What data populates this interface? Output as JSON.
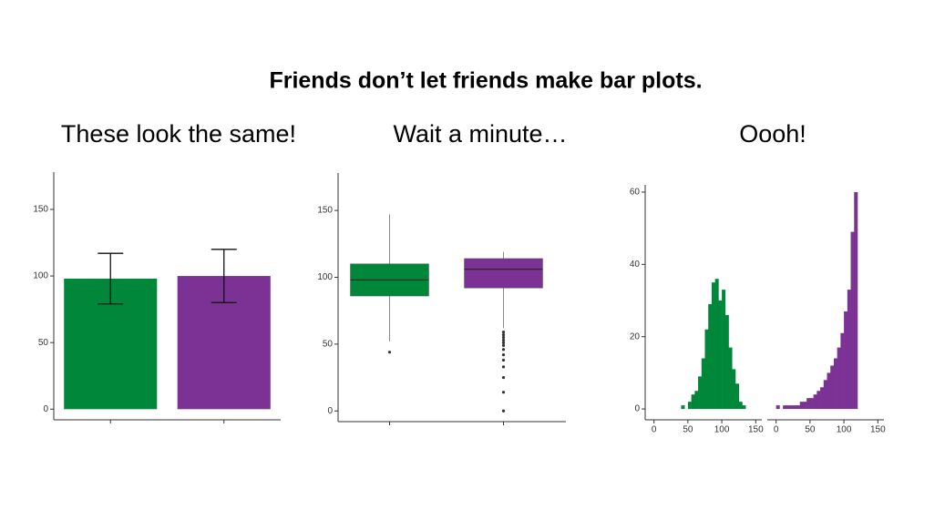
{
  "title": "Friends don’t let friends make bar plots.",
  "chart_data": [
    {
      "type": "bar",
      "title": "These look the same!",
      "categories": [
        null,
        null
      ],
      "values": [
        98,
        100
      ],
      "errors": [
        19,
        20
      ],
      "colors": [
        "#00873a",
        "#7b3294"
      ],
      "ylim": [
        -8,
        178
      ],
      "yticks": [
        0,
        50,
        100,
        150
      ]
    },
    {
      "type": "box",
      "title": "Wait a minute…",
      "categories": [
        null,
        null
      ],
      "colors": [
        "#00873a",
        "#7b3294"
      ],
      "boxes": [
        {
          "whisker_low": 52,
          "q1": 86,
          "median": 98,
          "q3": 110,
          "whisker_high": 147,
          "outliers": [
            44
          ]
        },
        {
          "whisker_low": 62,
          "q1": 92,
          "median": 106,
          "q3": 114,
          "whisker_high": 119,
          "outliers": [
            59,
            57,
            55,
            53,
            51,
            49,
            46,
            42,
            38,
            33,
            25,
            14,
            0
          ]
        }
      ],
      "ylim": [
        -8,
        178
      ],
      "yticks": [
        0,
        50,
        100,
        150
      ]
    },
    {
      "type": "histogram",
      "title": "Oooh!",
      "ylim": [
        -3,
        62
      ],
      "yticks": [
        0,
        20,
        40,
        60
      ],
      "panels": [
        {
          "color": "#00873a",
          "xlim": [
            -13,
            159
          ],
          "xticks": [
            0,
            50,
            100,
            150
          ],
          "bins": [
            40,
            45,
            50,
            55,
            60,
            65,
            70,
            75,
            80,
            85,
            90,
            95,
            100,
            105,
            110,
            115,
            120,
            125,
            130,
            135
          ],
          "counts": [
            1,
            0,
            2,
            4,
            5,
            9,
            14,
            22,
            29,
            35,
            36,
            30,
            33,
            26,
            17,
            11,
            7,
            2,
            1
          ]
        },
        {
          "color": "#7b3294",
          "xlim": [
            -13,
            159
          ],
          "xticks": [
            0,
            50,
            100,
            150
          ],
          "bins": [
            0,
            5,
            10,
            15,
            20,
            25,
            30,
            35,
            40,
            45,
            50,
            55,
            60,
            65,
            70,
            75,
            80,
            85,
            90,
            95,
            100,
            105,
            110,
            115,
            120
          ],
          "counts": [
            1,
            0,
            1,
            1,
            1,
            1,
            1,
            2,
            2,
            3,
            3,
            4,
            5,
            6,
            8,
            10,
            12,
            14,
            17,
            21,
            27,
            33,
            49,
            60
          ]
        }
      ]
    }
  ]
}
